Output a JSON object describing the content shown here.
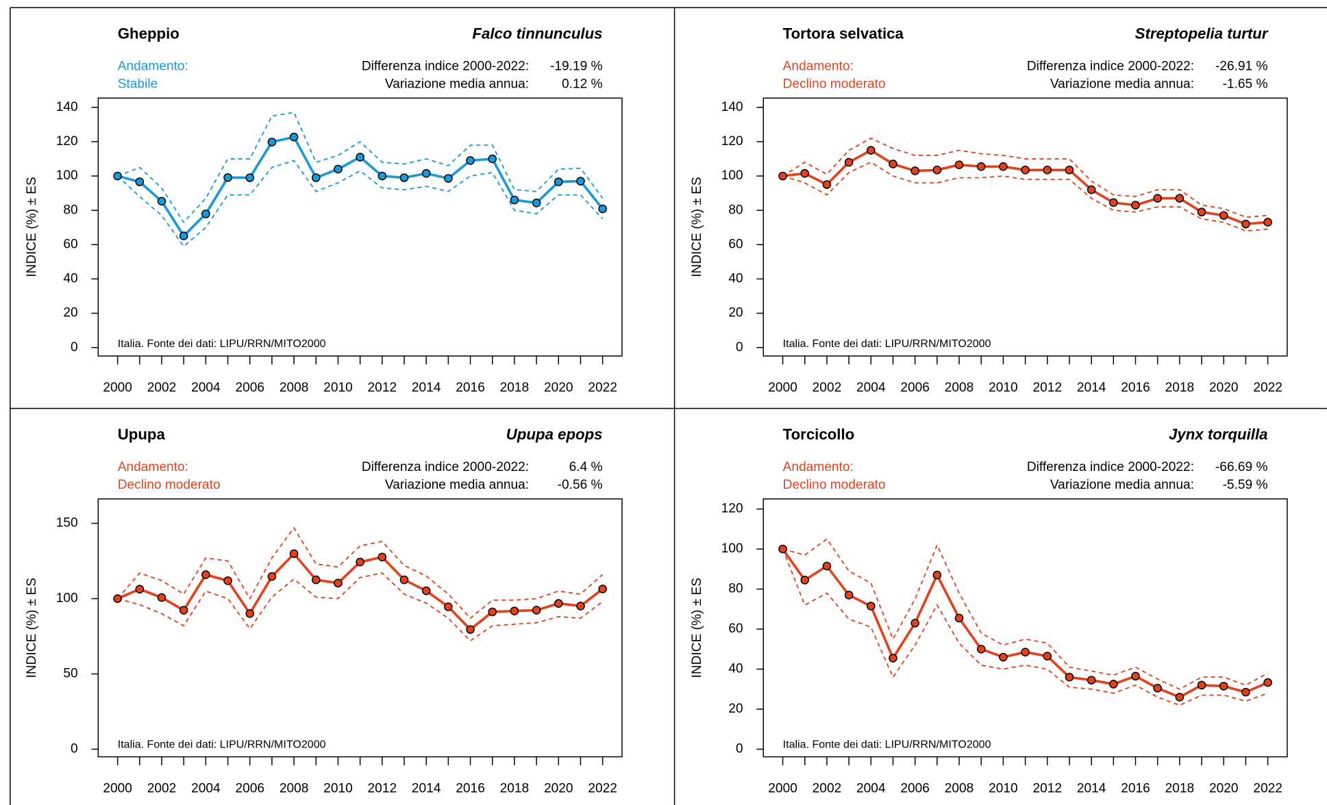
{
  "chart_data": [
    {
      "type": "line",
      "title": "Gheppio",
      "subtitle": "Falco tinnunculus",
      "trend_label": "Andamento:",
      "trend": "Stabile",
      "stats": [
        {
          "label": "Differenza indice 2000-2022:",
          "value": "-19.19 %"
        },
        {
          "label": "Variazione media annua:",
          "value": "0.12 %"
        }
      ],
      "source": "Italia. Fonte dei dati: LIPU/RRN/MITO2000",
      "ylabel": "INDICE (%) ± ES",
      "color": "#1b9ad7",
      "x": [
        2000,
        2001,
        2002,
        2003,
        2004,
        2005,
        2006,
        2007,
        2008,
        2009,
        2010,
        2011,
        2012,
        2013,
        2014,
        2015,
        2016,
        2017,
        2018,
        2019,
        2020,
        2021,
        2022
      ],
      "values": [
        100,
        96.6,
        85.3,
        65.1,
        77.9,
        99.1,
        99,
        119.8,
        122.7,
        99,
        104,
        111,
        100,
        99,
        101.5,
        98.6,
        109,
        110,
        86,
        84.3,
        96.6,
        97,
        80.81
      ],
      "upper": [
        100,
        105,
        93,
        73,
        87,
        110,
        110,
        135,
        137,
        108,
        112,
        120,
        108,
        107,
        110,
        106,
        118,
        118,
        92,
        91,
        104,
        104.5,
        87
      ],
      "lower": [
        100,
        88,
        77,
        59,
        70,
        89,
        89,
        105,
        109,
        91,
        96,
        103,
        93,
        92,
        94,
        91,
        100,
        102,
        80,
        78,
        89,
        89,
        75
      ],
      "xlim": [
        1999.12,
        2022.88
      ],
      "xticks": [
        2000,
        2002,
        2004,
        2006,
        2008,
        2010,
        2012,
        2014,
        2016,
        2018,
        2020,
        2022
      ],
      "ylim": [
        -4.93,
        145.42
      ],
      "yticks": [
        0,
        20,
        40,
        60,
        80,
        100,
        120,
        140
      ]
    },
    {
      "type": "line",
      "title": "Tortora selvatica",
      "subtitle": "Streptopelia turtur",
      "trend_label": "Andamento:",
      "trend": "Declino moderato",
      "stats": [
        {
          "label": "Differenza indice 2000-2022:",
          "value": "-26.91 %"
        },
        {
          "label": "Variazione media annua:",
          "value": "-1.65 %"
        }
      ],
      "source": "Italia. Fonte dei dati: LIPU/RRN/MITO2000",
      "ylabel": "INDICE (%) ± ES",
      "color": "#e2431e",
      "x": [
        2000,
        2001,
        2002,
        2003,
        2004,
        2005,
        2006,
        2007,
        2008,
        2009,
        2010,
        2011,
        2012,
        2013,
        2014,
        2015,
        2016,
        2017,
        2018,
        2019,
        2020,
        2021,
        2022
      ],
      "values": [
        100,
        101.5,
        95,
        108,
        115,
        107,
        103,
        103.5,
        106.5,
        105.5,
        105.5,
        103.5,
        103.5,
        103.5,
        92,
        84.5,
        83,
        87,
        87,
        79,
        77,
        72,
        73.09
      ],
      "upper": [
        100,
        108,
        101,
        115,
        122,
        116,
        112,
        112,
        115,
        113,
        112,
        110,
        110,
        110,
        97,
        89,
        88,
        92,
        92,
        83,
        81,
        76,
        77
      ],
      "lower": [
        100,
        96,
        89,
        102,
        108,
        100,
        96,
        96,
        99,
        99,
        100,
        98,
        98,
        98,
        87,
        80,
        79,
        82,
        82,
        75,
        73,
        68,
        69
      ],
      "xlim": [
        1999.12,
        2022.88
      ],
      "xticks": [
        2000,
        2002,
        2004,
        2006,
        2008,
        2010,
        2012,
        2014,
        2016,
        2018,
        2020,
        2022
      ],
      "ylim": [
        -4.93,
        145.42
      ],
      "yticks": [
        0,
        20,
        40,
        60,
        80,
        100,
        120,
        140
      ]
    },
    {
      "type": "line",
      "title": "Upupa",
      "subtitle": "Upupa epops",
      "trend_label": "Andamento:",
      "trend": "Declino moderato",
      "stats": [
        {
          "label": "Differenza indice 2000-2022:",
          "value": "6.4 %"
        },
        {
          "label": "Variazione media annua:",
          "value": "-0.56 %"
        }
      ],
      "source": "Italia. Fonte dei dati: LIPU/RRN/MITO2000",
      "ylabel": "INDICE (%) ± ES",
      "color": "#e2431e",
      "x": [
        2000,
        2001,
        2002,
        2003,
        2004,
        2005,
        2006,
        2007,
        2008,
        2009,
        2010,
        2011,
        2012,
        2013,
        2014,
        2015,
        2016,
        2017,
        2018,
        2019,
        2020,
        2021,
        2022
      ],
      "values": [
        100,
        106.3,
        100.7,
        92.3,
        115.9,
        111.9,
        90.1,
        114.7,
        129.8,
        112.5,
        110.3,
        124.3,
        127.6,
        112.5,
        105.2,
        94.6,
        79.5,
        91.2,
        91.8,
        92.3,
        96.8,
        95.1,
        106.4
      ],
      "upper": [
        100,
        117,
        112,
        103,
        127,
        125,
        100,
        127,
        147,
        123,
        121,
        135,
        138,
        122,
        115,
        103,
        87,
        99,
        99,
        100,
        105,
        103,
        116
      ],
      "lower": [
        100,
        96,
        90,
        82,
        105,
        100,
        80,
        101,
        113,
        101,
        100,
        114,
        117,
        103,
        97,
        87,
        72,
        82,
        83,
        84,
        88,
        87,
        98
      ],
      "xlim": [
        1999.12,
        2022.88
      ],
      "xticks": [
        2000,
        2002,
        2004,
        2006,
        2008,
        2010,
        2012,
        2014,
        2016,
        2018,
        2020,
        2022
      ],
      "ylim": [
        -5.04,
        166.23
      ],
      "yticks": [
        0,
        50,
        100,
        150
      ]
    },
    {
      "type": "line",
      "title": "Torcicollo",
      "subtitle": "Jynx torquilla",
      "trend_label": "Andamento:",
      "trend": "Declino moderato",
      "stats": [
        {
          "label": "Differenza indice 2000-2022:",
          "value": "-66.69 %"
        },
        {
          "label": "Variazione media annua:",
          "value": "-5.59 %"
        }
      ],
      "source": "Italia. Fonte dei dati: LIPU/RRN/MITO2000",
      "ylabel": "INDICE (%) ± ES",
      "color": "#e2431e",
      "x": [
        2000,
        2001,
        2002,
        2003,
        2004,
        2005,
        2006,
        2007,
        2008,
        2009,
        2010,
        2011,
        2012,
        2013,
        2014,
        2015,
        2016,
        2017,
        2018,
        2019,
        2020,
        2021,
        2022
      ],
      "values": [
        100,
        84.5,
        91.5,
        77,
        71.5,
        45.5,
        63,
        87,
        65.5,
        50,
        46,
        48.5,
        46.5,
        36,
        34.5,
        32.5,
        36.5,
        30.5,
        26,
        32,
        31.5,
        28.5,
        33.31
      ],
      "upper": [
        100,
        97,
        105,
        89,
        83,
        55,
        75,
        102,
        78,
        58,
        52,
        55,
        53,
        41,
        39,
        37,
        41,
        35,
        30,
        36,
        36,
        32,
        38
      ],
      "lower": [
        100,
        72,
        78,
        65,
        61,
        36,
        52,
        72,
        53,
        42,
        40,
        42,
        40,
        31,
        30,
        28,
        32,
        26,
        22,
        27,
        27,
        24,
        28
      ],
      "xlim": [
        1999.12,
        2022.88
      ],
      "xticks": [
        2000,
        2002,
        2004,
        2006,
        2008,
        2010,
        2012,
        2014,
        2016,
        2018,
        2020,
        2022
      ],
      "ylim": [
        -3.79,
        125.05
      ],
      "yticks": [
        0,
        20,
        40,
        60,
        80,
        100,
        120
      ]
    }
  ]
}
